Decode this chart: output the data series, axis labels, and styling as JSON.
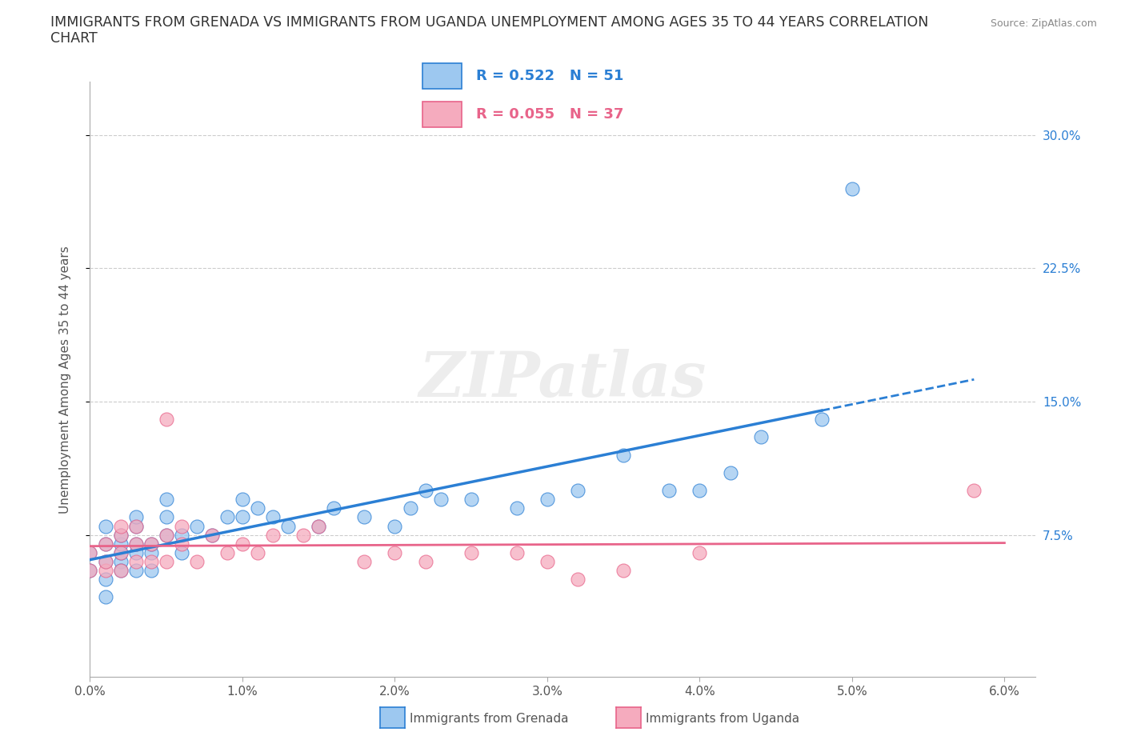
{
  "title_line1": "IMMIGRANTS FROM GRENADA VS IMMIGRANTS FROM UGANDA UNEMPLOYMENT AMONG AGES 35 TO 44 YEARS CORRELATION",
  "title_line2": "CHART",
  "source": "Source: ZipAtlas.com",
  "ylabel": "Unemployment Among Ages 35 to 44 years",
  "xlim": [
    0.0,
    0.062
  ],
  "ylim": [
    -0.005,
    0.33
  ],
  "xticks": [
    0.0,
    0.01,
    0.02,
    0.03,
    0.04,
    0.05,
    0.06
  ],
  "xticklabels": [
    "0.0%",
    "1.0%",
    "2.0%",
    "3.0%",
    "4.0%",
    "5.0%",
    "6.0%"
  ],
  "yticks": [
    0.075,
    0.15,
    0.225,
    0.3
  ],
  "yticklabels": [
    "7.5%",
    "15.0%",
    "22.5%",
    "30.0%"
  ],
  "grenada_color": "#9DC8F0",
  "uganda_color": "#F5ABBE",
  "grenada_line_color": "#2B7FD4",
  "uganda_line_color": "#E8648A",
  "grenada_R": 0.522,
  "grenada_N": 51,
  "uganda_R": 0.055,
  "uganda_N": 37,
  "background_color": "#ffffff",
  "grid_color": "#cccccc",
  "title_fontsize": 12.5,
  "axis_label_fontsize": 11,
  "tick_fontsize": 11,
  "legend_fontsize": 13,
  "grenada_x": [
    0.0,
    0.0,
    0.001,
    0.001,
    0.001,
    0.001,
    0.001,
    0.002,
    0.002,
    0.002,
    0.002,
    0.002,
    0.003,
    0.003,
    0.003,
    0.003,
    0.003,
    0.004,
    0.004,
    0.004,
    0.005,
    0.005,
    0.005,
    0.006,
    0.006,
    0.007,
    0.008,
    0.009,
    0.01,
    0.01,
    0.011,
    0.012,
    0.013,
    0.015,
    0.016,
    0.018,
    0.02,
    0.021,
    0.022,
    0.023,
    0.025,
    0.028,
    0.03,
    0.032,
    0.035,
    0.038,
    0.04,
    0.042,
    0.044,
    0.048,
    0.05
  ],
  "grenada_y": [
    0.055,
    0.065,
    0.05,
    0.06,
    0.07,
    0.08,
    0.04,
    0.06,
    0.065,
    0.07,
    0.075,
    0.055,
    0.055,
    0.065,
    0.07,
    0.08,
    0.085,
    0.055,
    0.065,
    0.07,
    0.075,
    0.085,
    0.095,
    0.065,
    0.075,
    0.08,
    0.075,
    0.085,
    0.085,
    0.095,
    0.09,
    0.085,
    0.08,
    0.08,
    0.09,
    0.085,
    0.08,
    0.09,
    0.1,
    0.095,
    0.095,
    0.09,
    0.095,
    0.1,
    0.12,
    0.1,
    0.1,
    0.11,
    0.13,
    0.14,
    0.27
  ],
  "uganda_x": [
    0.0,
    0.0,
    0.001,
    0.001,
    0.001,
    0.002,
    0.002,
    0.002,
    0.002,
    0.003,
    0.003,
    0.003,
    0.004,
    0.004,
    0.005,
    0.005,
    0.005,
    0.006,
    0.006,
    0.007,
    0.008,
    0.009,
    0.01,
    0.011,
    0.012,
    0.014,
    0.015,
    0.018,
    0.02,
    0.022,
    0.025,
    0.028,
    0.03,
    0.032,
    0.035,
    0.04,
    0.058
  ],
  "uganda_y": [
    0.055,
    0.065,
    0.055,
    0.06,
    0.07,
    0.055,
    0.065,
    0.075,
    0.08,
    0.06,
    0.07,
    0.08,
    0.06,
    0.07,
    0.06,
    0.075,
    0.14,
    0.07,
    0.08,
    0.06,
    0.075,
    0.065,
    0.07,
    0.065,
    0.075,
    0.075,
    0.08,
    0.06,
    0.065,
    0.06,
    0.065,
    0.065,
    0.06,
    0.05,
    0.055,
    0.065,
    0.1
  ],
  "trend_solid_end": 0.048,
  "trend_dash_end": 0.058
}
